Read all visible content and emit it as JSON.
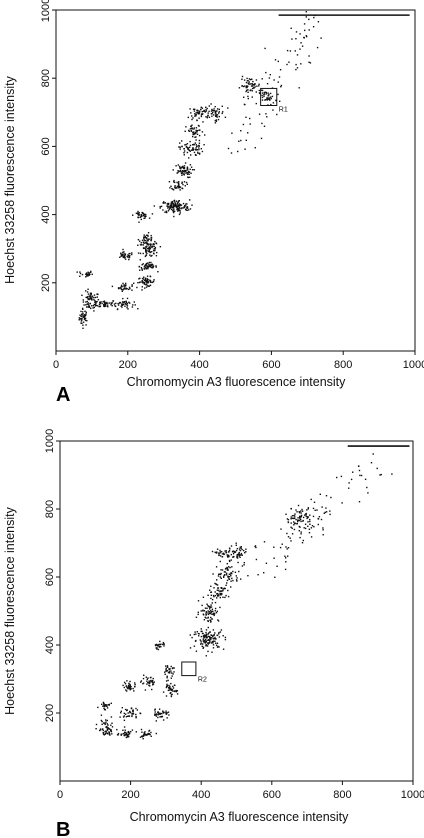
{
  "chart_data": [
    {
      "type": "scatter",
      "panel_label": "A",
      "xlabel": "Chromomycin A3 fluorescence intensity",
      "ylabel": "Hoechst 33258 fluorescence intensity",
      "xlim": [
        0,
        1000
      ],
      "ylim": [
        0,
        1000
      ],
      "x_ticks": [
        0,
        200,
        400,
        600,
        800,
        1000
      ],
      "y_ticks": [
        200,
        400,
        600,
        800,
        1000
      ],
      "grid": false,
      "clusters": [
        {
          "x": 75,
          "y": 100,
          "sx": 6,
          "sy": 12,
          "n": 40
        },
        {
          "x": 95,
          "y": 148,
          "sx": 12,
          "sy": 14,
          "n": 70
        },
        {
          "x": 80,
          "y": 228,
          "sx": 10,
          "sy": 5,
          "n": 25
        },
        {
          "x": 135,
          "y": 140,
          "sx": 15,
          "sy": 6,
          "n": 40
        },
        {
          "x": 185,
          "y": 140,
          "sx": 15,
          "sy": 7,
          "n": 45
        },
        {
          "x": 190,
          "y": 190,
          "sx": 12,
          "sy": 6,
          "n": 35
        },
        {
          "x": 250,
          "y": 205,
          "sx": 12,
          "sy": 7,
          "n": 55
        },
        {
          "x": 255,
          "y": 250,
          "sx": 12,
          "sy": 6,
          "n": 55
        },
        {
          "x": 190,
          "y": 280,
          "sx": 12,
          "sy": 6,
          "n": 35
        },
        {
          "x": 260,
          "y": 300,
          "sx": 12,
          "sy": 12,
          "n": 75
        },
        {
          "x": 250,
          "y": 330,
          "sx": 10,
          "sy": 8,
          "n": 40
        },
        {
          "x": 235,
          "y": 400,
          "sx": 10,
          "sy": 5,
          "n": 35
        },
        {
          "x": 330,
          "y": 425,
          "sx": 20,
          "sy": 10,
          "n": 140
        },
        {
          "x": 340,
          "y": 490,
          "sx": 10,
          "sy": 8,
          "n": 40
        },
        {
          "x": 350,
          "y": 530,
          "sx": 14,
          "sy": 10,
          "n": 60
        },
        {
          "x": 375,
          "y": 595,
          "sx": 16,
          "sy": 12,
          "n": 70
        },
        {
          "x": 385,
          "y": 645,
          "sx": 12,
          "sy": 10,
          "n": 40
        },
        {
          "x": 400,
          "y": 700,
          "sx": 15,
          "sy": 10,
          "n": 55
        },
        {
          "x": 440,
          "y": 700,
          "sx": 14,
          "sy": 12,
          "n": 45
        },
        {
          "x": 540,
          "y": 780,
          "sx": 14,
          "sy": 12,
          "n": 55
        },
        {
          "x": 590,
          "y": 745,
          "sx": 12,
          "sy": 10,
          "n": 35
        }
      ],
      "scatter_trail": {
        "x_range": [
          500,
          720
        ],
        "y_range": [
          580,
          990
        ],
        "n": 90
      },
      "saturation_line": {
        "x0": 620,
        "x1": 985,
        "y": 985
      },
      "gate": {
        "label": "R1",
        "x0": 570,
        "x1": 615,
        "y0": 720,
        "y1": 770
      }
    },
    {
      "type": "scatter",
      "panel_label": "B",
      "xlabel": "Chromomycin A3 fluorescence intensity",
      "ylabel": "Hoechst 33258 fluorescence intensity",
      "xlim": [
        0,
        1000
      ],
      "ylim": [
        0,
        1000
      ],
      "x_ticks": [
        0,
        200,
        400,
        600,
        800,
        1000
      ],
      "y_ticks": [
        200,
        400,
        600,
        800,
        1000
      ],
      "grid": false,
      "clusters": [
        {
          "x": 130,
          "y": 155,
          "sx": 12,
          "sy": 15,
          "n": 60
        },
        {
          "x": 125,
          "y": 225,
          "sx": 8,
          "sy": 5,
          "n": 25
        },
        {
          "x": 185,
          "y": 140,
          "sx": 10,
          "sy": 7,
          "n": 35
        },
        {
          "x": 240,
          "y": 140,
          "sx": 12,
          "sy": 6,
          "n": 35
        },
        {
          "x": 195,
          "y": 200,
          "sx": 12,
          "sy": 8,
          "n": 40
        },
        {
          "x": 285,
          "y": 200,
          "sx": 12,
          "sy": 7,
          "n": 40
        },
        {
          "x": 195,
          "y": 280,
          "sx": 10,
          "sy": 8,
          "n": 35
        },
        {
          "x": 250,
          "y": 290,
          "sx": 10,
          "sy": 8,
          "n": 35
        },
        {
          "x": 310,
          "y": 270,
          "sx": 10,
          "sy": 10,
          "n": 40
        },
        {
          "x": 305,
          "y": 325,
          "sx": 8,
          "sy": 8,
          "n": 30
        },
        {
          "x": 280,
          "y": 400,
          "sx": 8,
          "sy": 6,
          "n": 25
        },
        {
          "x": 420,
          "y": 420,
          "sx": 22,
          "sy": 15,
          "n": 130
        },
        {
          "x": 420,
          "y": 500,
          "sx": 14,
          "sy": 15,
          "n": 70
        },
        {
          "x": 450,
          "y": 560,
          "sx": 15,
          "sy": 14,
          "n": 60
        },
        {
          "x": 475,
          "y": 610,
          "sx": 16,
          "sy": 14,
          "n": 55
        },
        {
          "x": 500,
          "y": 670,
          "sx": 16,
          "sy": 12,
          "n": 55
        },
        {
          "x": 460,
          "y": 670,
          "sx": 10,
          "sy": 8,
          "n": 30
        },
        {
          "x": 675,
          "y": 775,
          "sx": 20,
          "sy": 15,
          "n": 80
        }
      ],
      "scatter_trail": {
        "x_range": [
          550,
          900
        ],
        "y_range": [
          600,
          960
        ],
        "n": 90
      },
      "saturation_line": {
        "x0": 815,
        "x1": 990,
        "y": 985
      },
      "gate": {
        "label": "R2",
        "x0": 345,
        "x1": 385,
        "y0": 310,
        "y1": 350
      }
    }
  ]
}
